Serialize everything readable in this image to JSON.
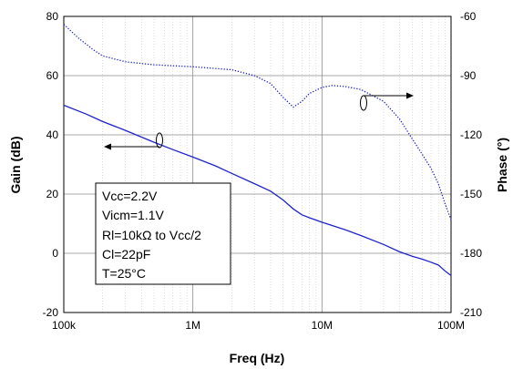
{
  "chart_data": {
    "type": "line",
    "x_scale": "log",
    "xlim": [
      100000,
      100000000
    ],
    "xlabel": "Freq (Hz)",
    "y_left": {
      "label": "Gain (dB)",
      "lim": [
        -20,
        80
      ],
      "ticks": [
        "80",
        "60",
        "40",
        "20",
        "0",
        "-20"
      ]
    },
    "y_right": {
      "label": "Phase (°)",
      "lim": [
        -210,
        -60
      ],
      "ticks": [
        "-60",
        "-90",
        "-120",
        "-150",
        "-180",
        "-210"
      ]
    },
    "x_ticks": [
      "100k",
      "1M",
      "10M",
      "100M"
    ],
    "grid": true,
    "line_color": "#1f24c8",
    "series": [
      {
        "axis": "left",
        "style": "solid",
        "points": [
          [
            100000,
            50
          ],
          [
            150000,
            47
          ],
          [
            200000,
            44.5
          ],
          [
            300000,
            41.5
          ],
          [
            500000,
            37.5
          ],
          [
            700000,
            35
          ],
          [
            1000000,
            32.5
          ],
          [
            1500000,
            29.5
          ],
          [
            2000000,
            27
          ],
          [
            3000000,
            23.5
          ],
          [
            4000000,
            21
          ],
          [
            5000000,
            18
          ],
          [
            6000000,
            15
          ],
          [
            7000000,
            13
          ],
          [
            8000000,
            12
          ],
          [
            10000000,
            10.5
          ],
          [
            15000000,
            8
          ],
          [
            20000000,
            6
          ],
          [
            30000000,
            3
          ],
          [
            40000000,
            0.5
          ],
          [
            50000000,
            -1
          ],
          [
            60000000,
            -2
          ],
          [
            70000000,
            -3
          ],
          [
            80000000,
            -4
          ],
          [
            85000000,
            -5
          ],
          [
            90000000,
            -6
          ],
          [
            100000000,
            -7.5
          ]
        ]
      },
      {
        "axis": "right",
        "style": "dotted",
        "points": [
          [
            100000,
            -64
          ],
          [
            130000,
            -71
          ],
          [
            170000,
            -77
          ],
          [
            200000,
            -80
          ],
          [
            300000,
            -83
          ],
          [
            500000,
            -84.5
          ],
          [
            1000000,
            -85.5
          ],
          [
            2000000,
            -87
          ],
          [
            3000000,
            -90
          ],
          [
            4000000,
            -94
          ],
          [
            5000000,
            -101
          ],
          [
            6000000,
            -106
          ],
          [
            7000000,
            -103
          ],
          [
            8000000,
            -99
          ],
          [
            10000000,
            -96
          ],
          [
            12000000,
            -95
          ],
          [
            15000000,
            -95.5
          ],
          [
            20000000,
            -97
          ],
          [
            30000000,
            -103
          ],
          [
            40000000,
            -112
          ],
          [
            50000000,
            -122
          ],
          [
            60000000,
            -130
          ],
          [
            70000000,
            -137
          ],
          [
            80000000,
            -145
          ],
          [
            90000000,
            -155
          ],
          [
            100000000,
            -163
          ]
        ]
      }
    ],
    "annotation_lines": [
      "Vcc=2.2V",
      "Vicm=1.1V",
      "Rl=10kΩ to Vcc/2",
      "Cl=22pF",
      "T=25°C"
    ]
  }
}
